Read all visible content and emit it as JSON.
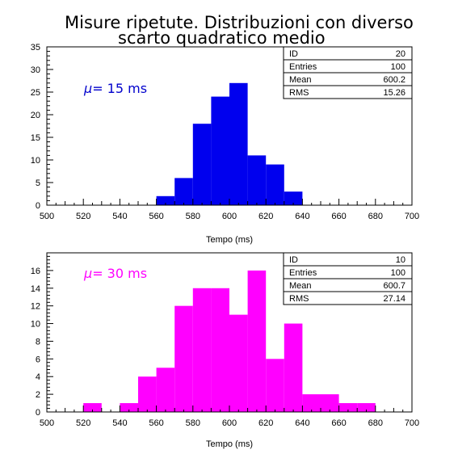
{
  "figure": {
    "title_line1": "Misure ripetute.  Distribuzioni con diverso",
    "title_line2": "scarto quadratico medio"
  },
  "chart_data": [
    {
      "type": "bar",
      "histogram": true,
      "xlabel": "Tempo (ms)",
      "ylabel": "",
      "xlim": [
        500,
        700
      ],
      "ylim": [
        0,
        35
      ],
      "bin_width": 10,
      "x_ticks": [
        500,
        520,
        540,
        560,
        580,
        600,
        620,
        640,
        660,
        680,
        700
      ],
      "y_ticks": [
        0,
        5,
        10,
        15,
        20,
        25,
        30,
        35
      ],
      "bin_starts": [
        560,
        570,
        580,
        590,
        600,
        610,
        620,
        630
      ],
      "values": [
        2,
        6,
        18,
        24,
        27,
        11,
        9,
        3
      ],
      "color": "#0000ee",
      "annotation": {
        "symbol": "μ",
        "text": "= 15 ms",
        "color": "#0000cc"
      },
      "stats": [
        {
          "label": "ID",
          "value": "20"
        },
        {
          "label": "Entries",
          "value": "100"
        },
        {
          "label": "Mean",
          "value": "600.2"
        },
        {
          "label": "RMS",
          "value": "15.26"
        }
      ]
    },
    {
      "type": "bar",
      "histogram": true,
      "xlabel": "Tempo (ms)",
      "ylabel": "",
      "xlim": [
        500,
        700
      ],
      "ylim": [
        0,
        18
      ],
      "bin_width": 10,
      "x_ticks": [
        500,
        520,
        540,
        560,
        580,
        600,
        620,
        640,
        660,
        680,
        700
      ],
      "y_ticks": [
        0,
        2,
        4,
        6,
        8,
        10,
        12,
        14,
        16
      ],
      "bin_starts": [
        520,
        530,
        540,
        550,
        560,
        570,
        580,
        590,
        600,
        610,
        620,
        630,
        640,
        650,
        660,
        670
      ],
      "values": [
        1,
        0,
        1,
        4,
        5,
        12,
        14,
        14,
        11,
        16,
        6,
        10,
        2,
        2,
        1,
        1
      ],
      "color": "#ff00ff",
      "annotation": {
        "symbol": "μ",
        "text": "= 30 ms",
        "color": "#ff00ff"
      },
      "stats": [
        {
          "label": "ID",
          "value": "10"
        },
        {
          "label": "Entries",
          "value": "100"
        },
        {
          "label": "Mean",
          "value": "600.7"
        },
        {
          "label": "RMS",
          "value": "27.14"
        }
      ]
    }
  ]
}
